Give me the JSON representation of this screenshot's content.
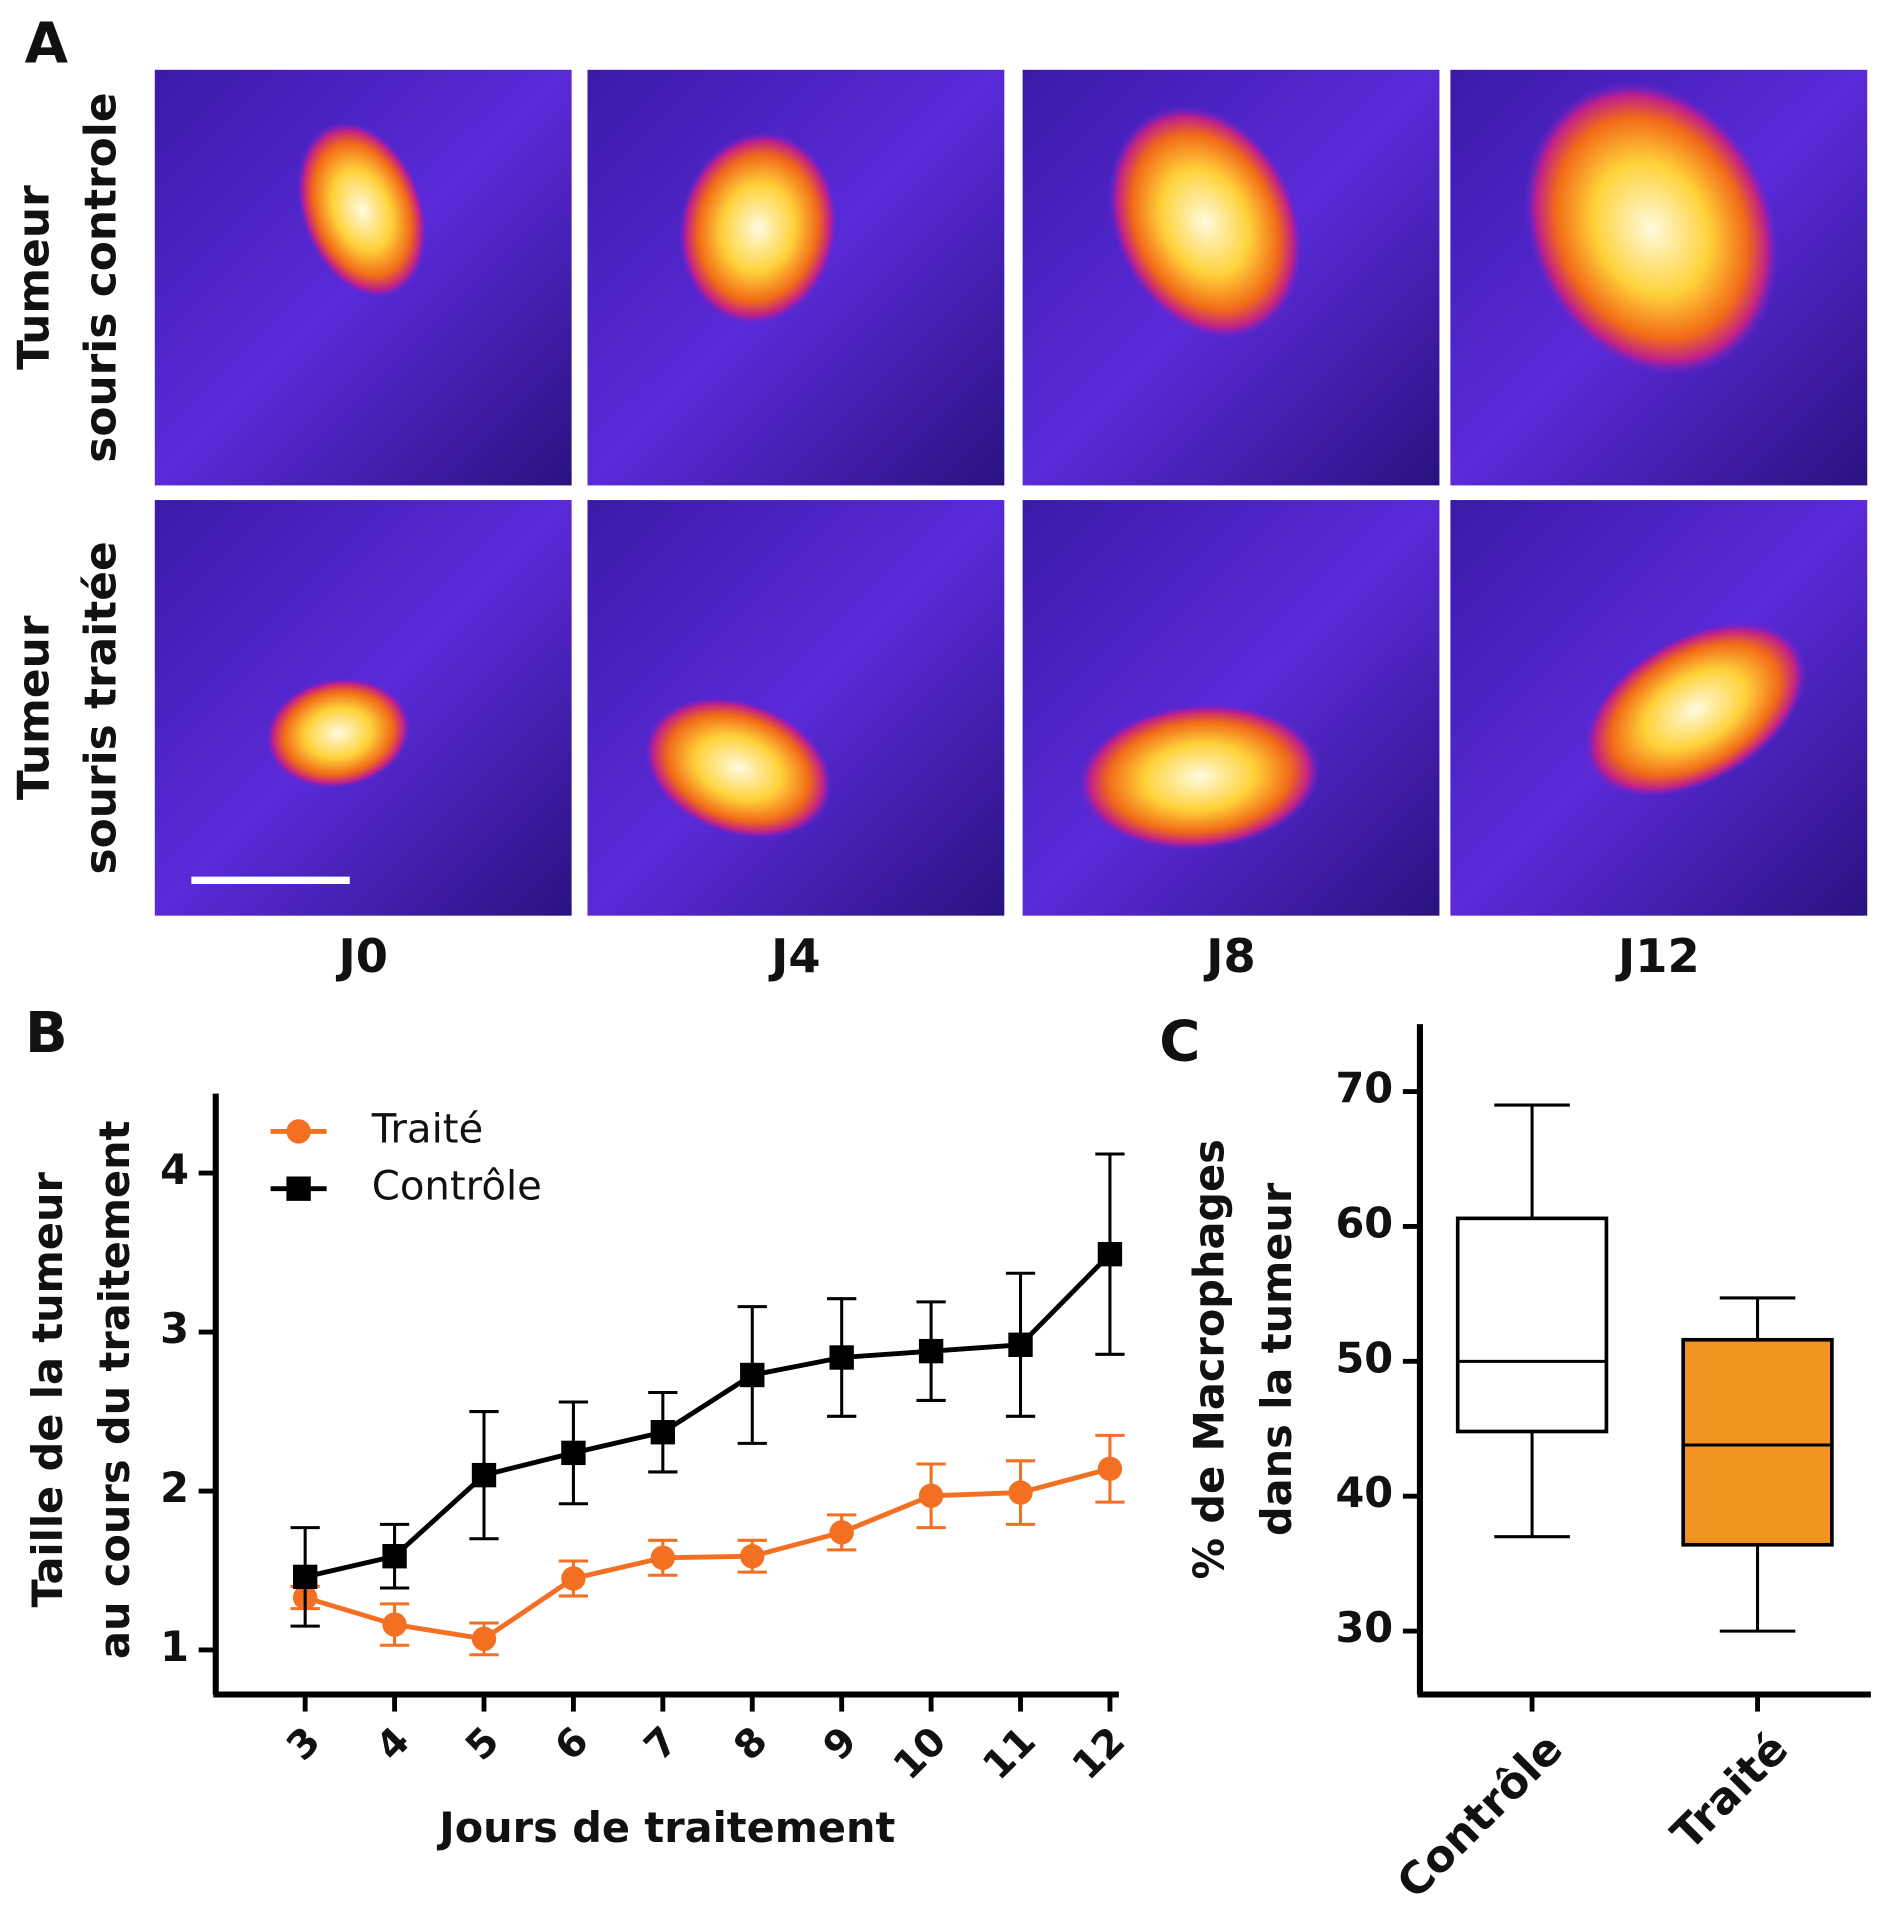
{
  "panel_a": {
    "letter": "A",
    "rows": [
      [
        "Tumeur",
        "souris controle"
      ],
      [
        "Tumeur",
        "souris traitée"
      ]
    ],
    "columns": [
      "J0",
      "J4",
      "J8",
      "J12"
    ]
  },
  "chart_data": [
    {
      "type": "line",
      "panel_label": "B",
      "y_label": [
        "Taille de la tumeur",
        "au cours du traitement"
      ],
      "x_label": "Jours de traitement",
      "x": [
        3,
        4,
        5,
        6,
        7,
        8,
        9,
        10,
        11,
        12
      ],
      "xlim": [
        2,
        12.1
      ],
      "xticks": [
        3,
        4,
        5,
        6,
        7,
        8,
        9,
        10,
        11,
        12
      ],
      "ylim": [
        0.72,
        4.5
      ],
      "yticks": [
        1,
        2,
        3,
        4
      ],
      "series": [
        {
          "name": "Traité",
          "color": "#f36f21",
          "marker": "circle",
          "values": [
            1.33,
            1.16,
            1.07,
            1.45,
            1.58,
            1.59,
            1.74,
            1.97,
            1.99,
            2.14
          ],
          "errors": [
            0.07,
            0.13,
            0.1,
            0.11,
            0.11,
            0.1,
            0.11,
            0.2,
            0.2,
            0.21
          ]
        },
        {
          "name": "Contrôle",
          "color": "#000000",
          "marker": "square",
          "values": [
            1.46,
            1.59,
            2.1,
            2.24,
            2.37,
            2.73,
            2.84,
            2.88,
            2.92,
            3.49
          ],
          "errors": [
            0.31,
            0.2,
            0.4,
            0.32,
            0.25,
            0.43,
            0.37,
            0.31,
            0.45,
            0.63
          ]
        }
      ]
    },
    {
      "type": "box",
      "panel_label": "C",
      "y_label": [
        "% de Macrophages",
        "dans la tumeur"
      ],
      "categories": [
        "Contrôle",
        "Traité"
      ],
      "ylim": [
        25.3,
        75
      ],
      "yticks": [
        30,
        40,
        50,
        60,
        70
      ],
      "boxes": [
        {
          "min": 37,
          "q1": 44.8,
          "median": 50,
          "q3": 60.6,
          "max": 69,
          "color": "#ffffff"
        },
        {
          "min": 30,
          "q1": 36.4,
          "median": 43.8,
          "q3": 51.6,
          "max": 54.7,
          "color": "#f39322"
        }
      ]
    }
  ]
}
